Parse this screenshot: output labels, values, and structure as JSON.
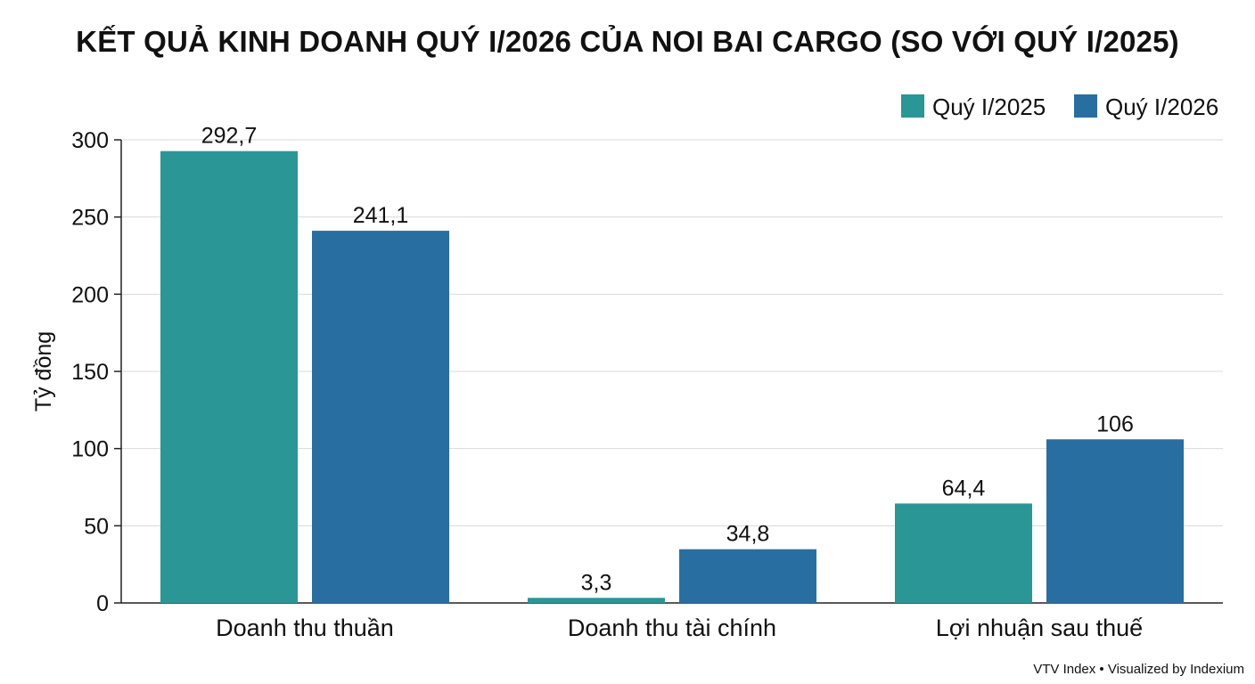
{
  "title": "KẾT QUẢ KINH DOANH QUÝ I/2026 CỦA NOI BAI CARGO (SO VỚI QUÝ I/2025)",
  "source": "VTV Index • Visualized by Indexium",
  "chart_data": {
    "type": "bar",
    "title": "KẾT QUẢ KINH DOANH QUÝ I/2026 CỦA NOI BAI CARGO (SO VỚI QUÝ I/2025)",
    "xlabel": "",
    "ylabel": "Tỷ đồng",
    "ylim": [
      0,
      300
    ],
    "yticks": [
      0,
      50,
      100,
      150,
      200,
      250,
      300
    ],
    "grid": true,
    "legend_position": "top-right",
    "categories": [
      "Doanh thu thuần",
      "Doanh thu tài chính",
      "Lợi nhuận sau thuế"
    ],
    "series": [
      {
        "name": "Quý I/2025",
        "color": "#2a9696",
        "values": [
          292.7,
          3.3,
          64.4
        ],
        "labels": [
          "292,7",
          "3,3",
          "64,4"
        ]
      },
      {
        "name": "Quý I/2026",
        "color": "#296ea0",
        "values": [
          241.1,
          34.8,
          106
        ],
        "labels": [
          "241,1",
          "34,8",
          "106"
        ]
      }
    ]
  }
}
